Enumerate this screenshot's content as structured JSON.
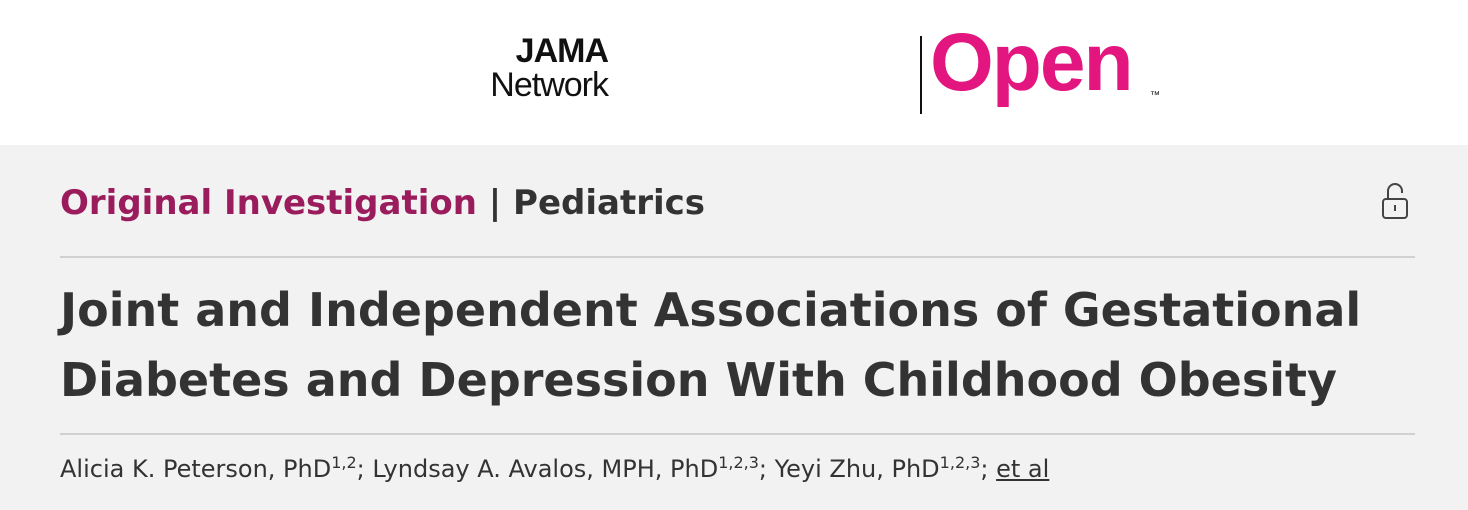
{
  "header": {
    "logo": {
      "brand": "JAMA",
      "sub": "Network",
      "product": "Open",
      "mark": "™"
    }
  },
  "article": {
    "section": "Original Investigation",
    "separator": "|",
    "subject": "Pediatrics",
    "title": "Joint and Independent Associations of Gestational Diabetes and Depression With Childhood Obesity",
    "authors": [
      {
        "name": "Alicia K. Peterson, PhD",
        "affiliations": "1,2"
      },
      {
        "name": "Lyndsay A. Avalos, MPH, PhD",
        "affiliations": "1,2,3"
      },
      {
        "name": "Yeyi Zhu, PhD",
        "affiliations": "1,2,3"
      }
    ],
    "author_separator": ";",
    "more": "et al"
  }
}
